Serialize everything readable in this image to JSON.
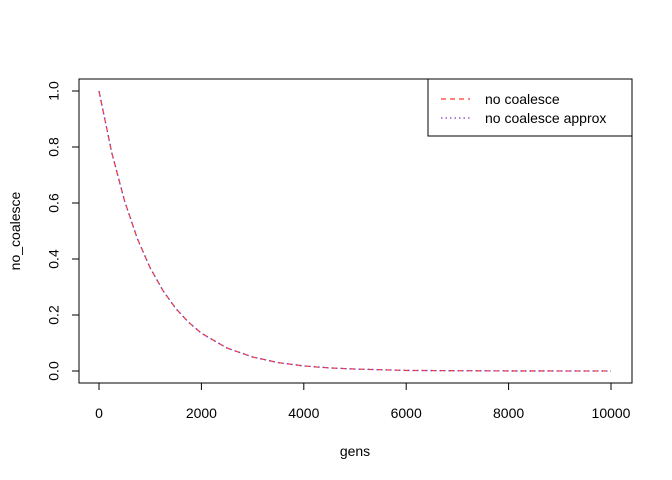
{
  "chart_data": {
    "type": "line",
    "title": "",
    "xlabel": "gens",
    "ylabel": "no_coalesce",
    "xlim": [
      0,
      10000
    ],
    "ylim": [
      0,
      1
    ],
    "x_ticks": [
      0,
      2000,
      4000,
      6000,
      8000,
      10000
    ],
    "y_ticks": [
      0.0,
      0.2,
      0.4,
      0.6,
      0.8,
      1.0
    ],
    "x_tick_labels": [
      "0",
      "2000",
      "4000",
      "6000",
      "8000",
      "10000"
    ],
    "y_tick_labels": [
      "0.0",
      "0.2",
      "0.4",
      "0.6",
      "0.8",
      "1.0"
    ],
    "grid": false,
    "legend_position": "top-right",
    "x": [
      0,
      250,
      500,
      750,
      1000,
      1250,
      1500,
      1750,
      2000,
      2500,
      3000,
      3500,
      4000,
      4500,
      5000,
      6000,
      7000,
      8000,
      9000,
      10000
    ],
    "series": [
      {
        "name": "no coalesce",
        "color": "#ff3b30",
        "style": "dashed",
        "values": [
          1.0,
          0.779,
          0.607,
          0.472,
          0.368,
          0.287,
          0.223,
          0.174,
          0.135,
          0.082,
          0.05,
          0.03,
          0.018,
          0.011,
          0.007,
          0.002,
          0.001,
          0.0003,
          0.0001,
          0.0
        ]
      },
      {
        "name": "no coalesce approx",
        "color": "#7f3fbf",
        "style": "dotted",
        "values": [
          1.0,
          0.779,
          0.607,
          0.472,
          0.368,
          0.287,
          0.223,
          0.174,
          0.135,
          0.082,
          0.05,
          0.03,
          0.018,
          0.011,
          0.007,
          0.002,
          0.001,
          0.0003,
          0.0001,
          0.0
        ]
      }
    ]
  }
}
